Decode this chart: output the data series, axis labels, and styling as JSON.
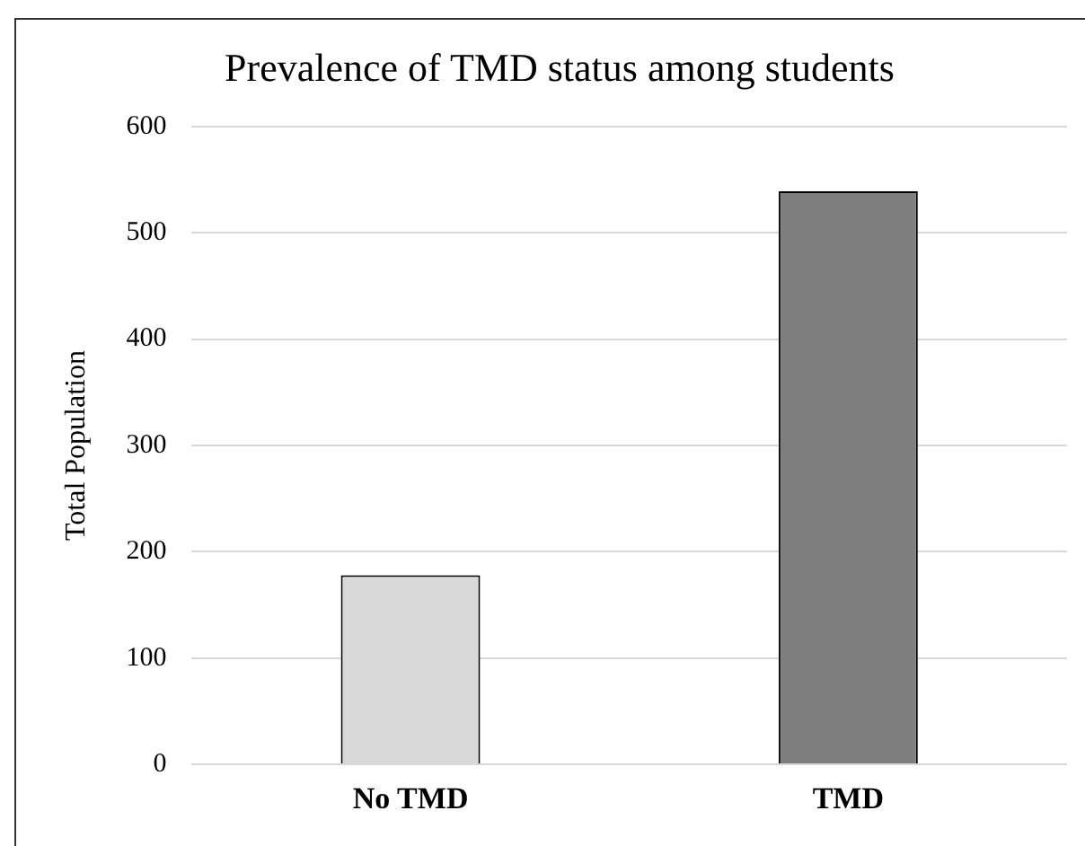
{
  "chart_data": {
    "type": "bar",
    "title": "Prevalence of TMD status among students",
    "ylabel": "Total Population",
    "categories": [
      "No TMD",
      "TMD"
    ],
    "values": [
      178,
      539
    ],
    "colors": [
      "#d9d9d9",
      "#7f7f7f"
    ],
    "ylim": [
      0,
      600
    ],
    "yticks": [
      0,
      100,
      200,
      300,
      400,
      500,
      600
    ],
    "grid": "y",
    "legend": false
  }
}
